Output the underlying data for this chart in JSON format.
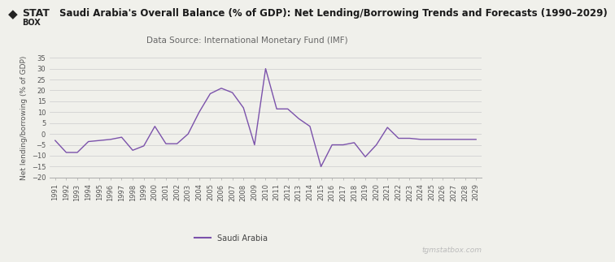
{
  "title": "Saudi Arabia's Overall Balance (% of GDP): Net Lending/Borrowing Trends and Forecasts (1990–2029)",
  "subtitle": "Data Source: International Monetary Fund (IMF)",
  "ylabel": "Net lending/borrowing (% of GDP)",
  "legend_label": "Saudi Arabia",
  "watermark": "tgmstatbox.com",
  "line_color": "#7B52AB",
  "background_color": "#F0F0EB",
  "years": [
    1991,
    1992,
    1993,
    1994,
    1995,
    1996,
    1997,
    1998,
    1999,
    2000,
    2001,
    2002,
    2003,
    2004,
    2005,
    2006,
    2007,
    2008,
    2009,
    2010,
    2011,
    2012,
    2013,
    2014,
    2015,
    2016,
    2017,
    2018,
    2019,
    2020,
    2021,
    2022,
    2023,
    2024,
    2025,
    2026,
    2027,
    2028,
    2029
  ],
  "values": [
    -3.0,
    -8.5,
    -8.5,
    -3.5,
    -3.0,
    -2.5,
    -1.5,
    -7.5,
    -5.5,
    3.5,
    -4.5,
    -4.5,
    0.0,
    10.0,
    18.5,
    21.0,
    19.0,
    12.0,
    -5.0,
    30.0,
    11.5,
    11.5,
    7.0,
    3.5,
    -15.0,
    -5.0,
    -5.0,
    -4.0,
    -10.5,
    -5.0,
    3.0,
    -2.0,
    -2.0,
    -2.5,
    -2.5,
    -2.5,
    -2.5,
    -2.5,
    -2.5
  ],
  "ylim": [
    -20,
    35
  ],
  "yticks": [
    -20,
    -15,
    -10,
    -5,
    0,
    5,
    10,
    15,
    20,
    25,
    30,
    35
  ],
  "title_fontsize": 8.5,
  "subtitle_fontsize": 7.5,
  "axis_fontsize": 6,
  "ylabel_fontsize": 6.5,
  "logo_text1": "◆ STAT",
  "logo_text2": "BOX"
}
